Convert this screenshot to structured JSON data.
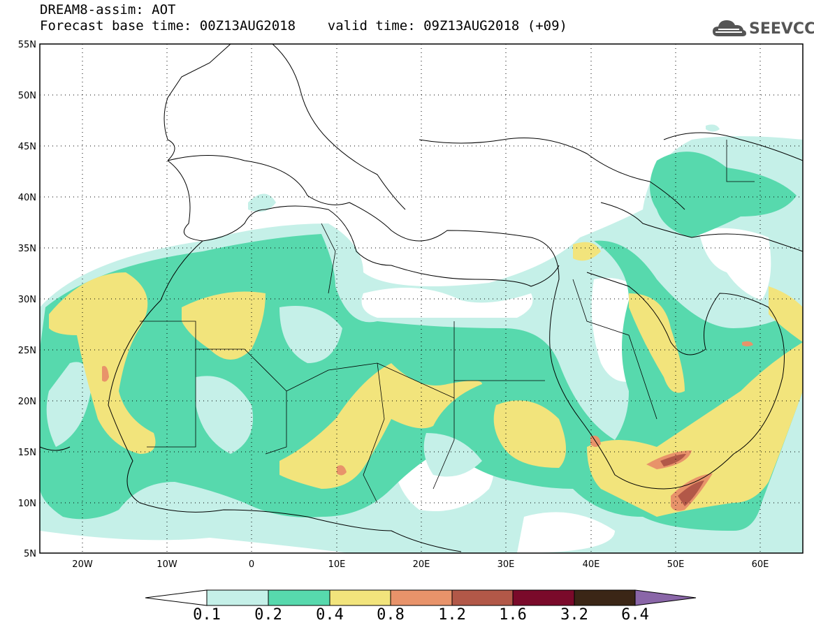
{
  "header": {
    "line1": "DREAM8-assim: AOT",
    "line2": "Forecast base time: 00Z13AUG2018    valid time: 09Z13AUG2018 (+09)"
  },
  "logo": {
    "text": "SEEVCCC",
    "icon": "cloud-icon"
  },
  "map": {
    "lon_range": [
      -25,
      65
    ],
    "lat_range": [
      5,
      55
    ],
    "grid": "dotted",
    "lat_labels": [
      "55N",
      "50N",
      "45N",
      "40N",
      "35N",
      "30N",
      "25N",
      "20N",
      "15N",
      "10N",
      "5N"
    ],
    "lon_labels": [
      "20W",
      "10W",
      "0",
      "10E",
      "20E",
      "30E",
      "40E",
      "50E",
      "60E"
    ]
  },
  "colorbar": {
    "labels": [
      "0.1",
      "0.2",
      "0.4",
      "0.8",
      "1.2",
      "1.6",
      "3.2",
      "6.4"
    ],
    "colors": [
      "#c5f0e8",
      "#57d9ad",
      "#f2e47c",
      "#e8936a",
      "#b25848",
      "#7a0a2a",
      "#3b2616",
      "#8a66a8"
    ]
  }
}
